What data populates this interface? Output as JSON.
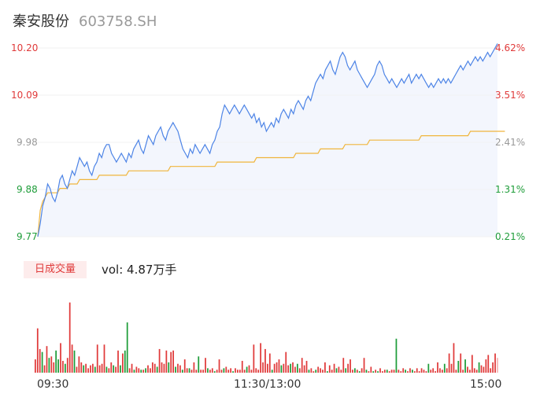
{
  "header": {
    "name": "秦安股份",
    "code": "603758.SH"
  },
  "volume_panel": {
    "badge": "日成交量",
    "vol_label": "vol: 4.87万手"
  },
  "colors": {
    "up": "#e03a3a",
    "down": "#1f9d3a",
    "neutral": "#999999",
    "price_line": "#4d84e6",
    "avg_line": "#f0b53c",
    "area_fill": "#f3f6fd"
  },
  "chart_data": [
    {
      "type": "line",
      "title": "",
      "xlabel": "",
      "ylabel": "",
      "ylim": [
        9.77,
        10.2
      ],
      "y_ticks": [
        "10.20",
        "10.09",
        "9.98",
        "9.88",
        "9.77"
      ],
      "y_ticks_right": [
        "4.62%",
        "3.51%",
        "2.41%",
        "1.31%",
        "0.21%"
      ],
      "x_ticks": [
        "09:30",
        "11:30/13:00",
        "15:00"
      ],
      "series": [
        {
          "key": "price",
          "values": [
            9.77,
            9.8,
            9.84,
            9.86,
            9.89,
            9.88,
            9.86,
            9.85,
            9.87,
            9.9,
            9.91,
            9.89,
            9.88,
            9.9,
            9.92,
            9.91,
            9.93,
            9.95,
            9.94,
            9.93,
            9.94,
            9.92,
            9.91,
            9.93,
            9.94,
            9.96,
            9.95,
            9.97,
            9.98,
            9.98,
            9.96,
            9.95,
            9.94,
            9.95,
            9.96,
            9.95,
            9.94,
            9.96,
            9.95,
            9.97,
            9.98,
            9.99,
            9.97,
            9.96,
            9.98,
            10.0,
            9.99,
            9.98,
            10.0,
            10.01,
            10.02,
            10.0,
            9.99,
            10.01,
            10.02,
            10.03,
            10.02,
            10.01,
            9.99,
            9.97,
            9.96,
            9.95,
            9.97,
            9.96,
            9.98,
            9.97,
            9.96,
            9.97,
            9.98,
            9.97,
            9.96,
            9.98,
            9.99,
            10.01,
            10.02,
            10.05,
            10.07,
            10.06,
            10.05,
            10.06,
            10.07,
            10.06,
            10.05,
            10.06,
            10.07,
            10.06,
            10.05,
            10.04,
            10.05,
            10.03,
            10.04,
            10.02,
            10.03,
            10.01,
            10.02,
            10.03,
            10.02,
            10.04,
            10.03,
            10.05,
            10.06,
            10.05,
            10.04,
            10.06,
            10.05,
            10.07,
            10.08,
            10.07,
            10.06,
            10.08,
            10.09,
            10.08,
            10.1,
            10.12,
            10.13,
            10.14,
            10.13,
            10.15,
            10.16,
            10.17,
            10.15,
            10.14,
            10.16,
            10.18,
            10.19,
            10.18,
            10.16,
            10.15,
            10.16,
            10.17,
            10.15,
            10.14,
            10.13,
            10.12,
            10.11,
            10.12,
            10.13,
            10.14,
            10.16,
            10.17,
            10.16,
            10.14,
            10.13,
            10.12,
            10.13,
            10.12,
            10.11,
            10.12,
            10.13,
            10.12,
            10.13,
            10.14,
            10.12,
            10.13,
            10.14,
            10.13,
            10.14,
            10.13,
            10.12,
            10.11,
            10.12,
            10.11,
            10.12,
            10.13,
            10.12,
            10.13,
            10.12,
            10.13,
            10.12,
            10.13,
            10.14,
            10.15,
            10.16,
            10.15,
            10.16,
            10.17,
            10.16,
            10.17,
            10.18,
            10.17,
            10.18,
            10.17,
            10.18,
            10.19,
            10.18,
            10.19,
            10.2,
            10.21
          ]
        },
        {
          "key": "avg",
          "values": [
            9.77,
            9.83,
            9.85,
            9.86,
            9.87,
            9.87,
            9.87,
            9.87,
            9.87,
            9.88,
            9.88,
            9.88,
            9.88,
            9.89,
            9.89,
            9.89,
            9.89,
            9.9,
            9.9,
            9.9,
            9.9,
            9.9,
            9.9,
            9.9,
            9.9,
            9.91,
            9.91,
            9.91,
            9.91,
            9.91,
            9.91,
            9.91,
            9.91,
            9.91,
            9.91,
            9.91,
            9.91,
            9.92,
            9.92,
            9.92,
            9.92,
            9.92,
            9.92,
            9.92,
            9.92,
            9.92,
            9.92,
            9.92,
            9.92,
            9.92,
            9.92,
            9.92,
            9.92,
            9.92,
            9.93,
            9.93,
            9.93,
            9.93,
            9.93,
            9.93,
            9.93,
            9.93,
            9.93,
            9.93,
            9.93,
            9.93,
            9.93,
            9.93,
            9.93,
            9.93,
            9.93,
            9.93,
            9.93,
            9.94,
            9.94,
            9.94,
            9.94,
            9.94,
            9.94,
            9.94,
            9.94,
            9.94,
            9.94,
            9.94,
            9.94,
            9.94,
            9.94,
            9.94,
            9.94,
            9.95,
            9.95,
            9.95,
            9.95,
            9.95,
            9.95,
            9.95,
            9.95,
            9.95,
            9.95,
            9.95,
            9.95,
            9.95,
            9.95,
            9.95,
            9.95,
            9.96,
            9.96,
            9.96,
            9.96,
            9.96,
            9.96,
            9.96,
            9.96,
            9.96,
            9.96,
            9.97,
            9.97,
            9.97,
            9.97,
            9.97,
            9.97,
            9.97,
            9.97,
            9.97,
            9.97,
            9.98,
            9.98,
            9.98,
            9.98,
            9.98,
            9.98,
            9.98,
            9.98,
            9.98,
            9.98,
            9.99,
            9.99,
            9.99,
            9.99,
            9.99,
            9.99,
            9.99,
            9.99,
            9.99,
            9.99,
            9.99,
            9.99,
            9.99,
            9.99,
            9.99,
            9.99,
            9.99,
            9.99,
            9.99,
            9.99,
            9.99,
            10.0,
            10.0,
            10.0,
            10.0,
            10.0,
            10.0,
            10.0,
            10.0,
            10.0,
            10.0,
            10.0,
            10.0,
            10.0,
            10.0,
            10.0,
            10.0,
            10.0,
            10.0,
            10.0,
            10.0,
            10.01,
            10.01,
            10.01,
            10.01,
            10.01,
            10.01,
            10.01,
            10.01,
            10.01,
            10.01,
            10.01,
            10.01,
            10.01,
            10.01,
            10.01
          ]
        }
      ]
    },
    {
      "type": "bar",
      "title": "",
      "ylabel": "",
      "ylim": [
        0,
        100
      ],
      "values": [
        18,
        60,
        32,
        28,
        10,
        36,
        20,
        22,
        14,
        30,
        18,
        40,
        16,
        12,
        20,
        95,
        38,
        30,
        8,
        22,
        14,
        10,
        12,
        6,
        10,
        12,
        8,
        38,
        10,
        12,
        38,
        8,
        6,
        14,
        10,
        8,
        30,
        10,
        26,
        30,
        68,
        6,
        12,
        4,
        8,
        6,
        4,
        4,
        6,
        10,
        6,
        14,
        12,
        8,
        32,
        14,
        12,
        30,
        14,
        28,
        30,
        8,
        12,
        10,
        4,
        18,
        6,
        6,
        4,
        14,
        4,
        22,
        4,
        4,
        20,
        6,
        4,
        6,
        2,
        4,
        18,
        4,
        6,
        8,
        4,
        6,
        2,
        6,
        4,
        4,
        16,
        4,
        8,
        10,
        4,
        38,
        6,
        4,
        40,
        14,
        32,
        12,
        26,
        4,
        12,
        14,
        18,
        10,
        12,
        28,
        10,
        12,
        14,
        8,
        12,
        6,
        20,
        10,
        16,
        4,
        6,
        2,
        4,
        8,
        6,
        4,
        14,
        2,
        10,
        4,
        12,
        6,
        8,
        4,
        20,
        6,
        12,
        18,
        4,
        6,
        4,
        2,
        6,
        20,
        4,
        2,
        8,
        2,
        4,
        2,
        6,
        2,
        4,
        4,
        2,
        4,
        4,
        46,
        4,
        2,
        6,
        4,
        2,
        6,
        4,
        2,
        6,
        2,
        6,
        4,
        2,
        12,
        4,
        6,
        2,
        14,
        6,
        4,
        12,
        6,
        26,
        12,
        40,
        4,
        16,
        26,
        4,
        18,
        8,
        4,
        24,
        6,
        4,
        14,
        10,
        8,
        18,
        24,
        6,
        14,
        26,
        20
      ],
      "directions": [
        "u",
        "u",
        "u",
        "d",
        "u",
        "u",
        "d",
        "u",
        "u",
        "d",
        "d",
        "u",
        "u",
        "d",
        "u",
        "u",
        "u",
        "d",
        "u",
        "u",
        "u",
        "d",
        "u",
        "u",
        "u",
        "u",
        "d",
        "u",
        "u",
        "u",
        "u",
        "d",
        "u",
        "u",
        "d",
        "u",
        "u",
        "d",
        "u",
        "d",
        "d",
        "u",
        "u",
        "d",
        "u",
        "u",
        "d",
        "u",
        "d",
        "u",
        "u",
        "u",
        "u",
        "d",
        "u",
        "u",
        "u",
        "u",
        "d",
        "u",
        "u",
        "d",
        "u",
        "u",
        "d",
        "u",
        "u",
        "d",
        "u",
        "u",
        "u",
        "d",
        "u",
        "u",
        "u",
        "d",
        "u",
        "u",
        "d",
        "u",
        "u",
        "u",
        "d",
        "u",
        "u",
        "u",
        "d",
        "u",
        "u",
        "u",
        "u",
        "u",
        "d",
        "u",
        "u",
        "u",
        "u",
        "u",
        "u",
        "u",
        "u",
        "u",
        "u",
        "d",
        "u",
        "u",
        "u",
        "d",
        "u",
        "u",
        "u",
        "d",
        "u",
        "u",
        "d",
        "u",
        "u",
        "u",
        "u",
        "d",
        "u",
        "u",
        "d",
        "u",
        "u",
        "u",
        "u",
        "d",
        "u",
        "u",
        "u",
        "d",
        "u",
        "u",
        "u",
        "d",
        "u",
        "u",
        "u",
        "d",
        "u",
        "d",
        "u",
        "u",
        "d",
        "u",
        "u",
        "d",
        "u",
        "d",
        "u",
        "u",
        "u",
        "d",
        "u",
        "u",
        "u",
        "d",
        "u",
        "u",
        "u",
        "d",
        "u",
        "u",
        "d",
        "u",
        "u",
        "u",
        "u",
        "u",
        "u",
        "d",
        "u",
        "u",
        "u",
        "u",
        "u",
        "u",
        "d",
        "u",
        "u",
        "u",
        "u",
        "u",
        "d",
        "u",
        "u",
        "d",
        "u",
        "u",
        "u",
        "u",
        "u",
        "d",
        "u",
        "u",
        "u",
        "u",
        "u",
        "u",
        "u",
        "n"
      ]
    }
  ]
}
